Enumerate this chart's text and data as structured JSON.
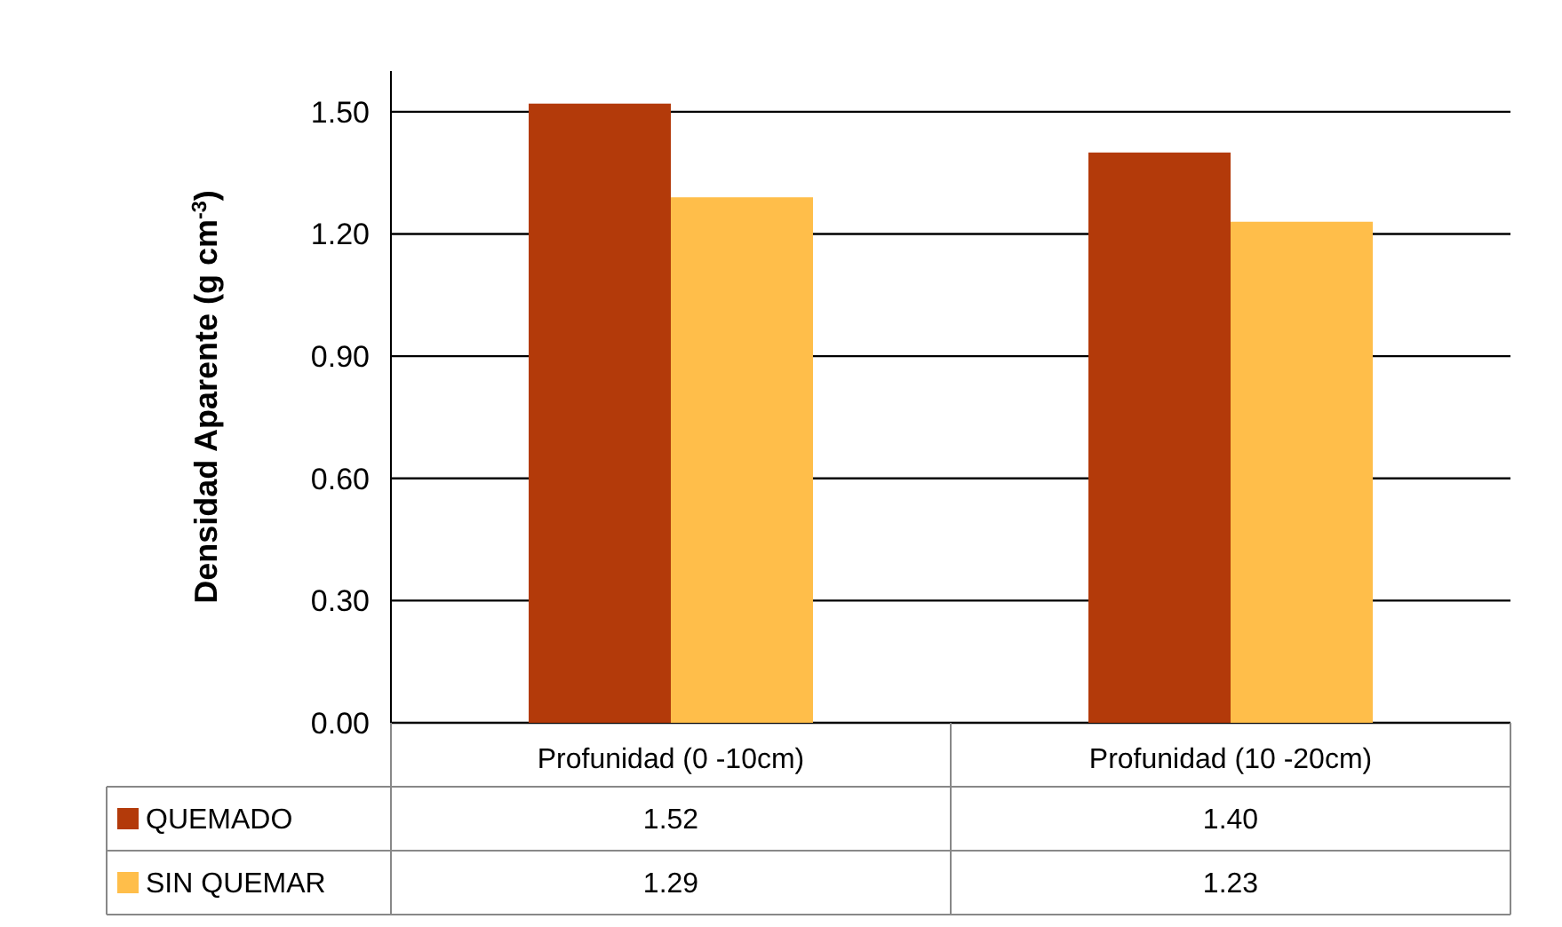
{
  "chart_data": {
    "type": "bar",
    "ylabel": "Densidad Aparente (g cm$^{-3}$)",
    "categories": [
      "Profunidad (0 -10cm)",
      "Profunidad (10 -20cm)"
    ],
    "series": [
      {
        "name": "QUEMADO",
        "color": "#b33a0a",
        "values": [
          1.52,
          1.4
        ],
        "value_labels": [
          "1.52",
          "1.40"
        ]
      },
      {
        "name": "SIN QUEMAR",
        "color": "#ffbe4a",
        "values": [
          1.29,
          1.23
        ],
        "value_labels": [
          "1.29",
          "1.23"
        ]
      }
    ],
    "ylim": [
      0,
      1.6
    ],
    "yticks": [
      {
        "value": 0,
        "label": "0.00"
      },
      {
        "value": 0.3,
        "label": "0.30"
      },
      {
        "value": 0.6,
        "label": "0.60"
      },
      {
        "value": 0.9,
        "label": "0.90"
      },
      {
        "value": 1.2,
        "label": "1.20"
      },
      {
        "value": 1.5,
        "label": "1.50"
      }
    ],
    "grid": "y",
    "legend": "bottom"
  }
}
